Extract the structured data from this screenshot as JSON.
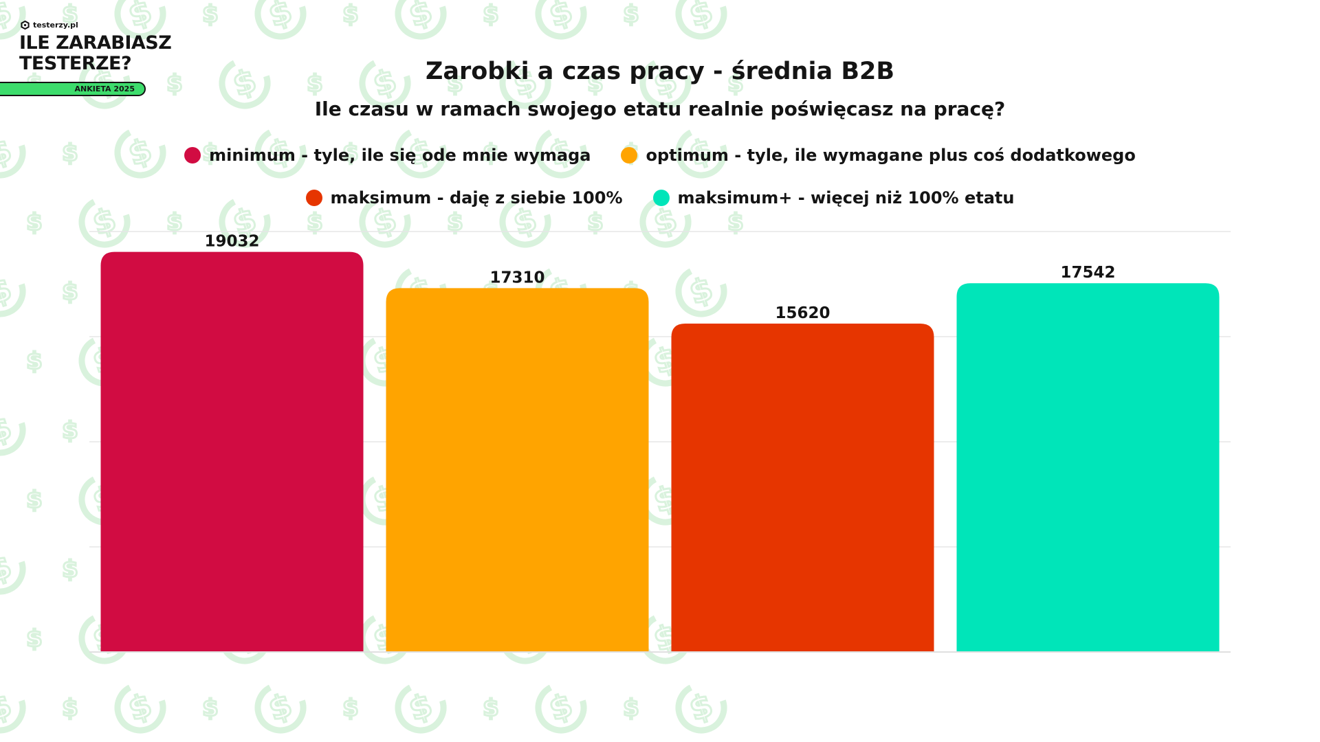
{
  "brand": {
    "site": "testerzy.pl",
    "title_line1": "ILE ZARABIASZ",
    "title_line2": "TESTERZE?",
    "badge": "ANKIETA 2025",
    "accent_color": "#3ddc6c"
  },
  "background": {
    "pattern_icon": "dollar-sign-icon",
    "pattern_color": "#d9f2dd"
  },
  "chart_data": {
    "type": "bar",
    "title": "Zarobki a czas pracy - średnia B2B",
    "subtitle": "Ile czasu w ramach swojego etatu realnie poświęcasz na pracę?",
    "categories": [
      "minimum - tyle, ile się ode mnie wymaga",
      "optimum - tyle, ile wymagane plus coś dodatkowego",
      "maksimum - daję z siebie 100%",
      "maksimum+ - więcej niż 100% etatu"
    ],
    "values": [
      19032,
      17310,
      15620,
      17542
    ],
    "colors": [
      "#d10c42",
      "#ffa400",
      "#e63500",
      "#00e5b9"
    ],
    "ylim": [
      0,
      20000
    ],
    "grid": true,
    "legend_position": "top-center",
    "data_labels": true
  }
}
